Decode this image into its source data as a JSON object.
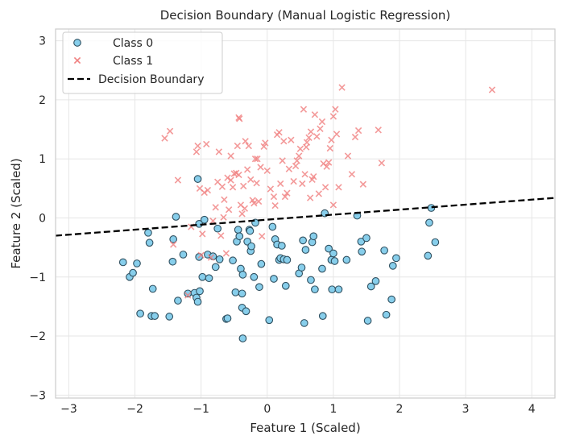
{
  "chart_data": {
    "type": "scatter",
    "title": "Decision Boundary (Manual Logistic Regression)",
    "xlabel": "Feature 1 (Scaled)",
    "ylabel": "Feature 2 (Scaled)",
    "xlim": [
      -3.2,
      4.35
    ],
    "ylim": [
      -3.05,
      3.2
    ],
    "xticks": [
      -3,
      -2,
      -1,
      0,
      1,
      2,
      3,
      4
    ],
    "yticks": [
      -3,
      -2,
      -1,
      0,
      1,
      2,
      3
    ],
    "grid": true,
    "legend_position": "top-left",
    "legend": [
      "Class 0",
      "Class 1",
      "Decision Boundary"
    ],
    "colors": {
      "class0_fill": "#87CEEB",
      "class0_edge": "#2f4f5f",
      "class1": "#F08080",
      "boundary": "#000000",
      "grid": "#e6e6e6",
      "frame": "#cccccc"
    },
    "series": [
      {
        "name": "Class 0",
        "marker": "circle",
        "points": [
          [
            -2.18,
            -0.75
          ],
          [
            -2.08,
            -1.0
          ],
          [
            -2.03,
            -0.93
          ],
          [
            -1.97,
            -0.77
          ],
          [
            -1.92,
            -1.62
          ],
          [
            -1.8,
            -0.25
          ],
          [
            -1.78,
            -0.42
          ],
          [
            -1.75,
            -1.66
          ],
          [
            -1.73,
            -1.2
          ],
          [
            -1.7,
            -1.66
          ],
          [
            -1.48,
            -1.67
          ],
          [
            -1.43,
            -0.74
          ],
          [
            -1.42,
            -0.36
          ],
          [
            -1.38,
            0.02
          ],
          [
            -1.35,
            -1.4
          ],
          [
            -1.27,
            -0.62
          ],
          [
            -1.2,
            -1.28
          ],
          [
            -1.1,
            -1.27
          ],
          [
            -1.07,
            -1.35
          ],
          [
            -1.05,
            -1.42
          ],
          [
            -1.03,
            -0.66
          ],
          [
            -1.05,
            0.66
          ],
          [
            -1.03,
            -0.1
          ],
          [
            -1.02,
            -1.24
          ],
          [
            -0.98,
            -1.0
          ],
          [
            -0.95,
            -0.03
          ],
          [
            -0.9,
            -0.62
          ],
          [
            -0.88,
            -1.02
          ],
          [
            -0.82,
            -0.65
          ],
          [
            -0.78,
            -0.83
          ],
          [
            -0.75,
            -0.18
          ],
          [
            -0.72,
            -0.7
          ],
          [
            -0.62,
            -1.71
          ],
          [
            -0.6,
            -1.7
          ],
          [
            -0.52,
            -0.72
          ],
          [
            -0.48,
            -1.26
          ],
          [
            -0.46,
            -0.4
          ],
          [
            -0.44,
            -0.2
          ],
          [
            -0.42,
            -0.31
          ],
          [
            -0.4,
            -0.86
          ],
          [
            -0.38,
            -1.28
          ],
          [
            -0.38,
            -1.52
          ],
          [
            -0.37,
            -0.96
          ],
          [
            -0.37,
            -2.04
          ],
          [
            -0.32,
            -1.58
          ],
          [
            -0.3,
            -0.4
          ],
          [
            -0.27,
            -0.2
          ],
          [
            -0.26,
            -0.22
          ],
          [
            -0.25,
            -0.56
          ],
          [
            -0.24,
            -0.48
          ],
          [
            -0.2,
            -1.0
          ],
          [
            -0.18,
            -0.08
          ],
          [
            -0.12,
            -1.17
          ],
          [
            -0.09,
            -0.78
          ],
          [
            0.03,
            -1.73
          ],
          [
            0.08,
            -0.15
          ],
          [
            0.1,
            -1.03
          ],
          [
            0.12,
            -0.36
          ],
          [
            0.15,
            -0.45
          ],
          [
            0.18,
            -0.71
          ],
          [
            0.2,
            -0.68
          ],
          [
            0.22,
            -0.47
          ],
          [
            0.25,
            -0.7
          ],
          [
            0.28,
            -1.15
          ],
          [
            0.3,
            -0.71
          ],
          [
            0.48,
            -0.94
          ],
          [
            0.52,
            -0.84
          ],
          [
            0.54,
            -0.38
          ],
          [
            0.58,
            -0.54
          ],
          [
            0.56,
            -1.78
          ],
          [
            0.66,
            -1.05
          ],
          [
            0.68,
            -0.41
          ],
          [
            0.72,
            -1.21
          ],
          [
            0.7,
            -0.31
          ],
          [
            0.83,
            -0.86
          ],
          [
            0.84,
            -1.66
          ],
          [
            0.87,
            0.08
          ],
          [
            0.93,
            -0.52
          ],
          [
            0.97,
            -0.71
          ],
          [
            0.98,
            -1.21
          ],
          [
            1.02,
            -0.73
          ],
          [
            1.0,
            -0.6
          ],
          [
            1.08,
            -1.21
          ],
          [
            1.2,
            -0.71
          ],
          [
            1.36,
            0.04
          ],
          [
            1.42,
            -0.4
          ],
          [
            1.43,
            -0.57
          ],
          [
            1.5,
            -0.34
          ],
          [
            1.52,
            -1.74
          ],
          [
            1.57,
            -1.16
          ],
          [
            1.64,
            -1.07
          ],
          [
            1.77,
            -0.55
          ],
          [
            1.8,
            -1.64
          ],
          [
            1.88,
            -1.38
          ],
          [
            1.9,
            -0.81
          ],
          [
            1.95,
            -0.68
          ],
          [
            2.43,
            -0.64
          ],
          [
            2.45,
            -0.08
          ],
          [
            2.48,
            0.17
          ],
          [
            2.54,
            -0.41
          ]
        ]
      },
      {
        "name": "Class 1",
        "marker": "x",
        "points": [
          [
            -1.55,
            1.35
          ],
          [
            -1.47,
            1.47
          ],
          [
            -1.42,
            -0.45
          ],
          [
            -1.35,
            0.64
          ],
          [
            -1.2,
            -1.31
          ],
          [
            -1.15,
            -0.15
          ],
          [
            -1.07,
            1.12
          ],
          [
            -1.05,
            1.22
          ],
          [
            -1.02,
            0.5
          ],
          [
            -1.0,
            -0.63
          ],
          [
            -0.98,
            -0.27
          ],
          [
            -0.95,
            0.43
          ],
          [
            -0.92,
            1.25
          ],
          [
            -0.9,
            0.47
          ],
          [
            -0.85,
            -0.67
          ],
          [
            -0.82,
            -0.05
          ],
          [
            -0.78,
            0.18
          ],
          [
            -0.75,
            0.61
          ],
          [
            -0.73,
            1.12
          ],
          [
            -0.7,
            -0.3
          ],
          [
            -0.68,
            0.53
          ],
          [
            -0.66,
            0.01
          ],
          [
            -0.65,
            0.31
          ],
          [
            -0.62,
            -0.6
          ],
          [
            -0.6,
            0.68
          ],
          [
            -0.58,
            0.14
          ],
          [
            -0.55,
            1.05
          ],
          [
            -0.55,
            0.64
          ],
          [
            -0.52,
            0.52
          ],
          [
            -0.5,
            0.75
          ],
          [
            -0.47,
            0.76
          ],
          [
            -0.45,
            1.22
          ],
          [
            -0.43,
            0.73
          ],
          [
            -0.43,
            1.7
          ],
          [
            -0.42,
            1.68
          ],
          [
            -0.4,
            0.22
          ],
          [
            -0.38,
            0.07
          ],
          [
            -0.36,
            0.54
          ],
          [
            -0.34,
            0.16
          ],
          [
            -0.33,
            1.3
          ],
          [
            -0.3,
            0.82
          ],
          [
            -0.28,
            1.22
          ],
          [
            -0.25,
            0.65
          ],
          [
            -0.22,
            0.3
          ],
          [
            -0.2,
            0.25
          ],
          [
            -0.18,
            1.0
          ],
          [
            -0.16,
            0.59
          ],
          [
            -0.15,
            1.0
          ],
          [
            -0.13,
            0.28
          ],
          [
            -0.1,
            0.86
          ],
          [
            -0.08,
            -0.31
          ],
          [
            -0.05,
            1.21
          ],
          [
            -0.03,
            1.27
          ],
          [
            0.0,
            0.8
          ],
          [
            0.05,
            0.49
          ],
          [
            0.1,
            0.36
          ],
          [
            0.12,
            0.21
          ],
          [
            0.15,
            1.41
          ],
          [
            0.18,
            1.45
          ],
          [
            0.2,
            0.58
          ],
          [
            0.23,
            0.97
          ],
          [
            0.25,
            1.3
          ],
          [
            0.27,
            0.36
          ],
          [
            0.3,
            0.42
          ],
          [
            0.33,
            0.83
          ],
          [
            0.36,
            1.32
          ],
          [
            0.4,
            0.62
          ],
          [
            0.43,
            0.88
          ],
          [
            0.45,
            0.97
          ],
          [
            0.48,
            1.05
          ],
          [
            0.5,
            1.17
          ],
          [
            0.53,
            0.58
          ],
          [
            0.55,
            1.84
          ],
          [
            0.57,
            0.74
          ],
          [
            0.59,
            1.2
          ],
          [
            0.6,
            1.28
          ],
          [
            0.63,
            1.36
          ],
          [
            0.65,
            0.34
          ],
          [
            0.66,
            1.46
          ],
          [
            0.68,
            0.65
          ],
          [
            0.7,
            0.7
          ],
          [
            0.72,
            1.75
          ],
          [
            0.75,
            1.38
          ],
          [
            0.78,
            0.41
          ],
          [
            0.8,
            1.51
          ],
          [
            0.83,
            1.63
          ],
          [
            0.85,
            0.92
          ],
          [
            0.88,
            0.52
          ],
          [
            0.9,
            0.87
          ],
          [
            0.93,
            0.94
          ],
          [
            0.95,
            1.18
          ],
          [
            0.97,
            1.32
          ],
          [
            1.0,
            1.72
          ],
          [
            1.0,
            0.22
          ],
          [
            1.03,
            1.84
          ],
          [
            1.05,
            1.42
          ],
          [
            1.08,
            0.52
          ],
          [
            1.13,
            2.21
          ],
          [
            1.22,
            1.05
          ],
          [
            1.28,
            0.74
          ],
          [
            1.33,
            1.37
          ],
          [
            1.38,
            1.48
          ],
          [
            1.45,
            0.57
          ],
          [
            1.68,
            1.49
          ],
          [
            1.73,
            0.93
          ],
          [
            3.4,
            2.17
          ]
        ]
      },
      {
        "name": "Decision Boundary",
        "type": "line",
        "x": [
          -3.2,
          4.35
        ],
        "y": [
          -0.3,
          0.34
        ]
      }
    ]
  }
}
